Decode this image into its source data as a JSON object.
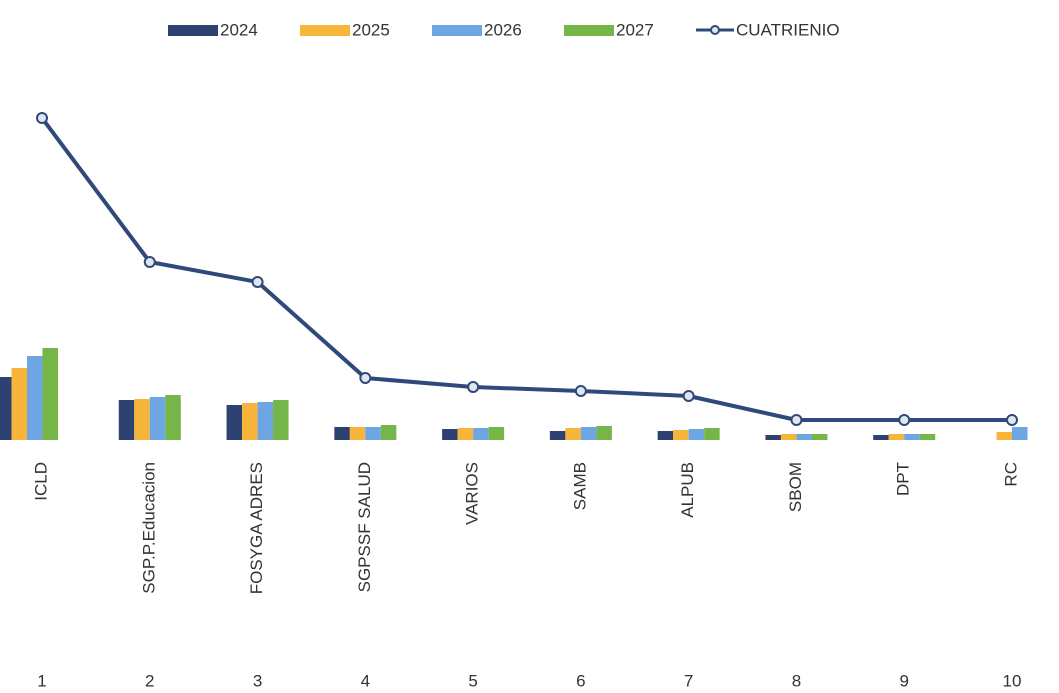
{
  "chart_data": {
    "type": "bar",
    "categories": [
      "ICLD",
      "SGP.P.Educacion",
      "FOSYGA ADRES",
      "SGPSSF SALUD",
      "VARIOS",
      "SAMB",
      "ALPUB",
      "SBOM",
      "DPT",
      "RC"
    ],
    "ranks": [
      1,
      2,
      3,
      4,
      5,
      6,
      7,
      8,
      9,
      10
    ],
    "series": [
      {
        "name": "2024",
        "color": "#2e4272",
        "values": [
          63,
          40,
          35,
          13,
          11,
          9,
          9,
          5,
          5,
          0
        ]
      },
      {
        "name": "2025",
        "color": "#f8b53c",
        "values": [
          72,
          41,
          37,
          13,
          12,
          12,
          10,
          6,
          6,
          8
        ]
      },
      {
        "name": "2026",
        "color": "#6ea6e4",
        "values": [
          84,
          43,
          38,
          13,
          12,
          13,
          11,
          6,
          6,
          13
        ]
      },
      {
        "name": "2027",
        "color": "#76b548",
        "values": [
          92,
          45,
          40,
          15,
          13,
          14,
          12,
          6,
          6,
          0
        ]
      },
      {
        "name": "CUATRIENIO",
        "color": "#2f4a7a",
        "type": "line",
        "values": [
          322,
          178,
          158,
          62,
          53,
          49,
          44,
          20,
          20,
          20
        ]
      }
    ],
    "ylim": [
      0,
      340
    ]
  }
}
